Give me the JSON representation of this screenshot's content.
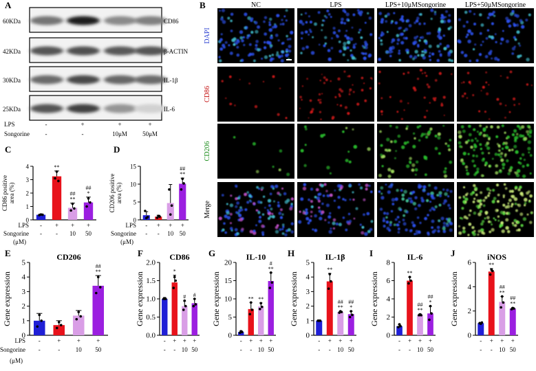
{
  "colors": {
    "blue": "#1f1fd6",
    "red": "#e8121b",
    "light_purple": "#d99ee6",
    "purple": "#9b1fe0",
    "dapi": "#2a3fd0",
    "cd86": "#c41010",
    "cd206": "#1a8c1a",
    "merge": "#000000"
  },
  "panel_letters": [
    "A",
    "B",
    "C",
    "D",
    "E",
    "F",
    "G",
    "H",
    "I",
    "J"
  ],
  "western_blot": {
    "proteins": [
      {
        "kda": "60KDa",
        "name": "CD86",
        "intensities": [
          0.55,
          0.95,
          0.45,
          0.5
        ]
      },
      {
        "kda": "42KDa",
        "name": "β-ACTIN",
        "intensities": [
          0.7,
          0.72,
          0.68,
          0.7
        ]
      },
      {
        "kda": "30KDa",
        "name": "IL-1β",
        "intensities": [
          0.6,
          0.75,
          0.62,
          0.6
        ]
      },
      {
        "kda": "25KDa",
        "name": "IL-6",
        "intensities": [
          0.7,
          0.8,
          0.4,
          0.12
        ]
      }
    ],
    "treatments": [
      {
        "label": "LPS",
        "values": [
          "-",
          "+",
          "+",
          "+"
        ]
      },
      {
        "label": "Songorine",
        "values": [
          "-",
          "-",
          "10μM",
          "50μM"
        ]
      }
    ]
  },
  "microscopy": {
    "columns": [
      "NC",
      "LPS",
      "LPS+10μMSongorine",
      "LPS+50μMSongorine"
    ],
    "rows": [
      "DAPI",
      "CD86",
      "CD206",
      "Merge"
    ],
    "density": {
      "DAPI": [
        0.7,
        0.55,
        0.75,
        0.45
      ],
      "CD86": [
        0.08,
        0.3,
        0.22,
        0.18
      ],
      "CD206": [
        0.04,
        0.1,
        0.4,
        0.85
      ],
      "Merge": [
        0.7,
        0.55,
        0.75,
        0.85
      ]
    }
  },
  "chart_data": [
    {
      "panel": "C",
      "type": "bar",
      "ylabel": "CD86 positive area (%)",
      "ylim": [
        0,
        4
      ],
      "yticks": [
        0,
        1,
        2,
        3,
        4
      ],
      "tick_labels": [
        "0",
        "1",
        "2",
        "3",
        "4"
      ],
      "values": [
        0.38,
        3.25,
        0.9,
        1.3
      ],
      "errors": [
        0.05,
        0.4,
        0.35,
        0.4
      ],
      "points": [
        [
          0.35,
          0.4,
          0.38
        ],
        [
          3.1,
          3.6,
          2.9
        ],
        [
          0.7,
          1.2,
          0.85
        ],
        [
          1.0,
          1.6,
          1.3
        ]
      ],
      "annotations": [
        [
          ""
        ],
        [
          "**"
        ],
        [
          "##",
          "**"
        ],
        [
          "##",
          "*"
        ]
      ],
      "rows": [
        {
          "label": "LPS",
          "values": [
            "-",
            "+",
            "+",
            "+"
          ]
        },
        {
          "label": "Songorine",
          "values": [
            "-",
            "-",
            "10",
            "50"
          ]
        }
      ],
      "unit_label": "(μM)"
    },
    {
      "panel": "D",
      "type": "bar",
      "ylabel": "CD206 positive area (%)",
      "ylim": [
        0,
        15
      ],
      "yticks": [
        0,
        5,
        10,
        15
      ],
      "tick_labels": [
        "0",
        "5",
        "10",
        "15"
      ],
      "values": [
        1.3,
        0.9,
        4.7,
        10.1
      ],
      "errors": [
        1.0,
        0.4,
        5.2,
        1.6
      ],
      "points": [
        [
          2.5,
          0.5,
          0.8
        ],
        [
          0.6,
          1.1,
          0.9
        ],
        [
          8.5,
          1.5,
          4.0
        ],
        [
          8.5,
          11.5,
          10.2
        ]
      ],
      "annotations": [
        [
          ""
        ],
        [
          ""
        ],
        [
          ""
        ],
        [
          "##",
          "**"
        ]
      ],
      "rows": [
        {
          "label": "LPS",
          "values": [
            "-",
            "+",
            "+",
            "+"
          ]
        },
        {
          "label": "Songorine",
          "values": [
            "-",
            "-",
            "10",
            "50"
          ]
        }
      ],
      "unit_label": "(μM)"
    },
    {
      "panel": "E",
      "type": "bar",
      "title": "CD206",
      "ylabel": "Gene expression",
      "ylim": [
        0,
        5
      ],
      "yticks": [
        0,
        1,
        2,
        3,
        4,
        5
      ],
      "tick_labels": [
        "0",
        "1",
        "2",
        "3",
        "4",
        "5"
      ],
      "values": [
        1.0,
        0.7,
        1.35,
        3.4
      ],
      "errors": [
        0.5,
        0.3,
        0.35,
        0.7
      ],
      "points": [
        [
          0.6,
          1.4,
          1.0
        ],
        [
          0.5,
          0.9,
          0.7
        ],
        [
          1.1,
          1.6,
          1.3
        ],
        [
          2.9,
          4.0,
          3.3
        ]
      ],
      "annotations": [
        [
          ""
        ],
        [
          ""
        ],
        [
          ""
        ],
        [
          "##",
          "**"
        ]
      ],
      "rows": [
        {
          "label": "LPS",
          "values": [
            "-",
            "+",
            "+",
            "+"
          ]
        },
        {
          "label": "Songorine",
          "values": [
            "-",
            "-",
            "10",
            "50"
          ]
        }
      ],
      "unit_label": "(μM)"
    },
    {
      "panel": "F",
      "type": "bar",
      "title": "CD86",
      "ylabel": "Gene expression",
      "ylim": [
        0,
        2.0
      ],
      "yticks": [
        0,
        0.5,
        1.0,
        1.5,
        2.0
      ],
      "tick_labels": [
        "0.0",
        "0.5",
        "1.0",
        "1.5",
        "2.0"
      ],
      "values": [
        1.0,
        1.45,
        0.8,
        0.88
      ],
      "errors": [
        0.04,
        0.2,
        0.14,
        0.12
      ],
      "points": [
        [
          1.0,
          1.0,
          1.0
        ],
        [
          1.3,
          1.6,
          1.5
        ],
        [
          0.7,
          0.95,
          0.8
        ],
        [
          0.8,
          1.0,
          0.85
        ]
      ],
      "annotations": [
        [
          ""
        ],
        [
          "*"
        ],
        [
          "#"
        ],
        [
          "#"
        ]
      ],
      "rows": [
        {
          "label": "",
          "values": [
            "-",
            "+",
            "+",
            "+"
          ]
        },
        {
          "label": "",
          "values": [
            "-",
            "-",
            "10",
            "50"
          ]
        }
      ],
      "unit_label": ""
    },
    {
      "panel": "G",
      "type": "bar",
      "title": "IL-10",
      "ylabel": "Gene expression",
      "ylim": [
        0,
        20
      ],
      "yticks": [
        0,
        5,
        10,
        15,
        20
      ],
      "tick_labels": [
        "0",
        "5",
        "10",
        "15",
        "20"
      ],
      "values": [
        0.9,
        7.2,
        7.9,
        14.9
      ],
      "errors": [
        0.3,
        1.8,
        1.0,
        2.3
      ],
      "points": [
        [
          0.7,
          1.1,
          0.9
        ],
        [
          5.8,
          9.0,
          7.0
        ],
        [
          7.2,
          8.8,
          7.8
        ],
        [
          13.0,
          17.2,
          14.5
        ]
      ],
      "annotations": [
        [
          ""
        ],
        [
          "**"
        ],
        [
          "**"
        ],
        [
          "#",
          "**"
        ]
      ],
      "rows": [
        {
          "label": "",
          "values": [
            "-",
            "+",
            "+",
            "+"
          ]
        },
        {
          "label": "",
          "values": [
            "-",
            "-",
            "10",
            "50"
          ]
        }
      ],
      "unit_label": ""
    },
    {
      "panel": "H",
      "type": "bar",
      "title": "IL-1β",
      "ylabel": "Gene expression",
      "ylim": [
        0,
        5
      ],
      "yticks": [
        0,
        1,
        2,
        3,
        4,
        5
      ],
      "tick_labels": [
        "0",
        "1",
        "2",
        "3",
        "4",
        "5"
      ],
      "values": [
        1.0,
        3.7,
        1.6,
        1.45
      ],
      "errors": [
        0.06,
        0.55,
        0.05,
        0.2
      ],
      "points": [
        [
          1.0,
          1.0,
          1.0
        ],
        [
          3.2,
          4.2,
          3.7
        ],
        [
          1.55,
          1.65,
          1.6
        ],
        [
          1.25,
          1.65,
          1.4
        ]
      ],
      "annotations": [
        [
          ""
        ],
        [
          "**"
        ],
        [
          "##",
          "**"
        ],
        [
          "##",
          "*"
        ]
      ],
      "rows": [
        {
          "label": "",
          "values": [
            "-",
            "+",
            "+",
            "+"
          ]
        },
        {
          "label": "",
          "values": [
            "-",
            "-",
            "10",
            "50"
          ]
        }
      ],
      "unit_label": ""
    },
    {
      "panel": "I",
      "type": "bar",
      "title": "IL-6",
      "ylabel": "Gene expression",
      "ylim": [
        0,
        8
      ],
      "yticks": [
        0,
        2,
        4,
        6,
        8
      ],
      "tick_labels": [
        "0",
        "2",
        "4",
        "6",
        "8"
      ],
      "values": [
        1.0,
        6.0,
        2.25,
        2.4
      ],
      "errors": [
        0.2,
        0.4,
        0.1,
        0.8
      ],
      "points": [
        [
          0.9,
          1.2,
          1.0
        ],
        [
          5.7,
          6.4,
          6.0
        ],
        [
          2.2,
          2.3,
          2.2
        ],
        [
          1.7,
          3.2,
          2.4
        ]
      ],
      "annotations": [
        [
          ""
        ],
        [
          "**"
        ],
        [
          "##",
          "**"
        ],
        [
          "##",
          "*"
        ]
      ],
      "rows": [
        {
          "label": "",
          "values": [
            "-",
            "+",
            "+",
            "+"
          ]
        },
        {
          "label": "",
          "values": [
            "-",
            "-",
            "10",
            "50"
          ]
        }
      ],
      "unit_label": ""
    },
    {
      "panel": "J",
      "type": "bar",
      "title": "iNOS",
      "ylabel": "Gene expression",
      "ylim": [
        0,
        6
      ],
      "yticks": [
        0,
        2,
        4,
        6
      ],
      "tick_labels": [
        "0",
        "2",
        "4",
        "6"
      ],
      "values": [
        1.0,
        5.25,
        2.75,
        2.2
      ],
      "errors": [
        0.06,
        0.25,
        0.45,
        0.08
      ],
      "points": [
        [
          1.0,
          0.95,
          1.05
        ],
        [
          5.0,
          5.4,
          5.3
        ],
        [
          2.3,
          3.2,
          2.7
        ],
        [
          2.15,
          2.25,
          2.2
        ]
      ],
      "annotations": [
        [
          ""
        ],
        [
          "**"
        ],
        [
          "##",
          "**"
        ],
        [
          "##",
          "**"
        ]
      ],
      "rows": [
        {
          "label": "",
          "values": [
            "-",
            "+",
            "+",
            "+"
          ]
        },
        {
          "label": "",
          "values": [
            "-",
            "-",
            "10",
            "50"
          ]
        }
      ],
      "unit_label": ""
    }
  ]
}
